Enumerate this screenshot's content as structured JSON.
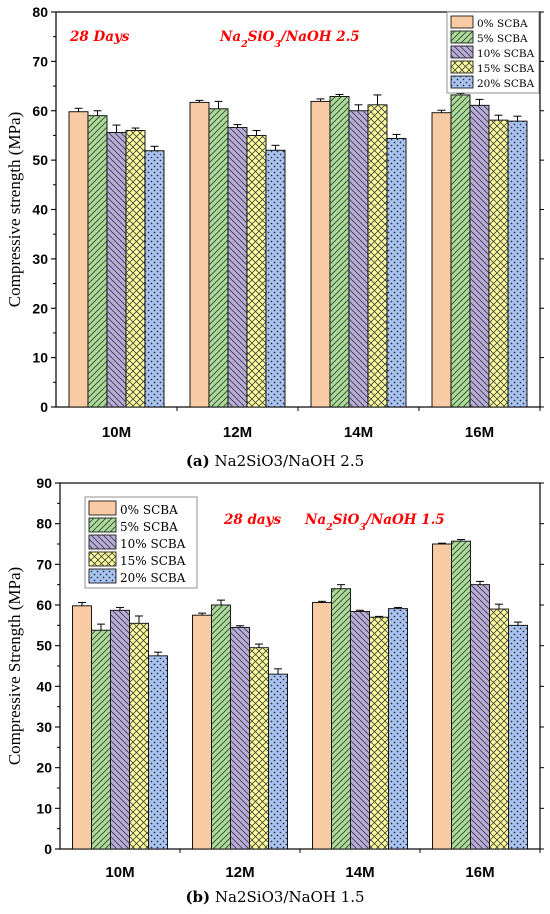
{
  "chart_data": [
    {
      "type": "bar",
      "title": "",
      "annotation_left": "28 Days",
      "annotation_right": "Na2SiO3/NaOH 2.5",
      "caption_letter": "(a)",
      "caption_text": "Na2SiO3/NaOH 2.5",
      "xlabel": "",
      "ylabel": "Compressive strength (MPa)",
      "ylim": [
        0,
        80
      ],
      "yticks": [
        0,
        10,
        20,
        30,
        40,
        50,
        60,
        70,
        80
      ],
      "categories": [
        "10M",
        "12M",
        "14M",
        "16M"
      ],
      "legend_position": "top-right",
      "grid": false,
      "series": [
        {
          "name": "0% SCBA",
          "values": [
            59.8,
            61.7,
            61.9,
            59.6
          ],
          "errors": [
            0.7,
            0.4,
            0.5,
            0.5
          ]
        },
        {
          "name": "5% SCBA",
          "values": [
            59.0,
            60.4,
            62.9,
            63.2
          ],
          "errors": [
            1.0,
            1.5,
            0.4,
            0.3
          ]
        },
        {
          "name": "10% SCBA",
          "values": [
            55.6,
            56.6,
            60.0,
            61.1
          ],
          "errors": [
            1.5,
            0.6,
            1.2,
            1.2
          ]
        },
        {
          "name": "15% SCBA",
          "values": [
            56.0,
            55.0,
            61.2,
            58.1
          ],
          "errors": [
            0.5,
            1.0,
            2.0,
            1.0
          ]
        },
        {
          "name": "20% SCBA",
          "values": [
            51.9,
            52.0,
            54.4,
            57.9
          ],
          "errors": [
            0.9,
            1.0,
            0.8,
            1.0
          ]
        }
      ]
    },
    {
      "type": "bar",
      "title": "",
      "annotation_left": "28 days",
      "annotation_right": "Na2SiO3/NaOH 1.5",
      "caption_letter": "(b)",
      "caption_text": "Na2SiO3/NaOH 1.5",
      "xlabel": "",
      "ylabel": "Compressive Strength (MPa)",
      "ylim": [
        0,
        90
      ],
      "yticks": [
        0,
        10,
        20,
        30,
        40,
        50,
        60,
        70,
        80,
        90
      ],
      "categories": [
        "10M",
        "12M",
        "14M",
        "16M"
      ],
      "legend_position": "top-left",
      "grid": false,
      "series": [
        {
          "name": "0% SCBA",
          "values": [
            59.8,
            57.5,
            60.6,
            75.0
          ],
          "errors": [
            0.8,
            0.5,
            0.3,
            0.2
          ]
        },
        {
          "name": "5% SCBA",
          "values": [
            53.8,
            60.0,
            64.0,
            75.7
          ],
          "errors": [
            1.5,
            1.2,
            1.0,
            0.4
          ]
        },
        {
          "name": "10% SCBA",
          "values": [
            58.7,
            54.5,
            58.4,
            65.0
          ],
          "errors": [
            0.7,
            0.4,
            0.3,
            0.8
          ]
        },
        {
          "name": "15% SCBA",
          "values": [
            55.5,
            49.5,
            57.0,
            59.0
          ],
          "errors": [
            1.8,
            0.9,
            0.2,
            1.2
          ]
        },
        {
          "name": "20% SCBA",
          "values": [
            47.5,
            43.0,
            59.1,
            55.0
          ],
          "errors": [
            0.9,
            1.3,
            0.3,
            0.8
          ]
        }
      ]
    }
  ],
  "colors": {
    "s0": "#f9cba5",
    "s1": "#a9dd98",
    "s2": "#b9addc",
    "s3": "#ffff9d",
    "s4": "#a9c3f3",
    "red_text": "#ff0000"
  },
  "patterns": [
    "none",
    "back-diagonal",
    "forward-diagonal",
    "crosshatch",
    "dots"
  ]
}
